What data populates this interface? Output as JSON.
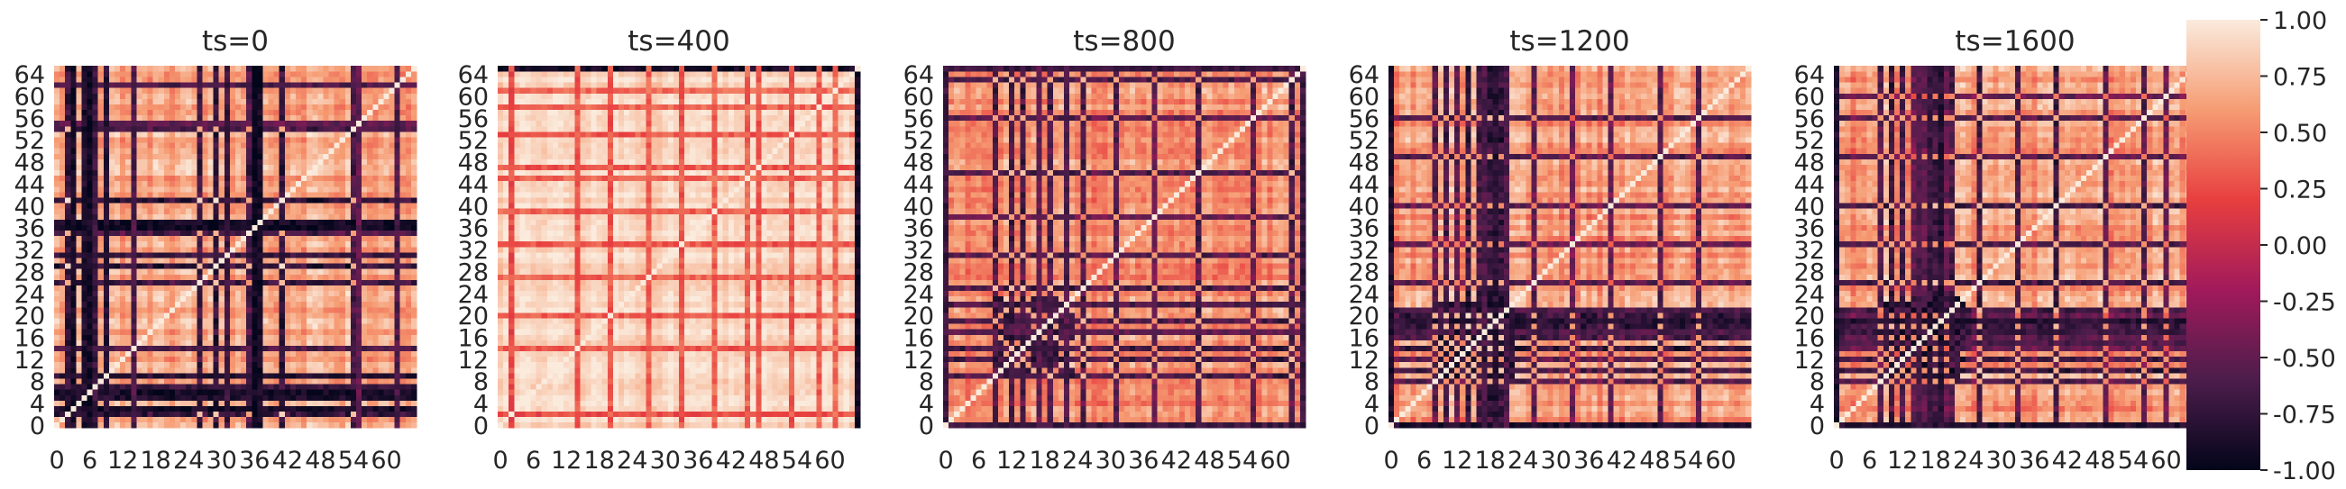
{
  "chart_data": {
    "type": "heatmap",
    "colormap": "rocket",
    "vmin": -1.0,
    "vmax": 1.0,
    "matrix_size": 66,
    "x_tick_labels": [
      "0",
      "6",
      "12",
      "18",
      "24",
      "30",
      "36",
      "42",
      "48",
      "54",
      "60"
    ],
    "y_tick_labels": [
      "64",
      "60",
      "56",
      "52",
      "48",
      "44",
      "40",
      "36",
      "32",
      "28",
      "24",
      "20",
      "16",
      "12",
      "8",
      "4",
      "0"
    ],
    "y_axis_origin": "bottom",
    "colorbar": {
      "ticks": [
        "1.00",
        "0.75",
        "0.50",
        "0.25",
        "0.00",
        "-0.25",
        "-0.50",
        "-0.75",
        "-1.00"
      ],
      "colors": [
        "#03051a",
        "#4c1d4b",
        "#a11a5b",
        "#e83f3f",
        "#f69c73",
        "#faebdd"
      ]
    },
    "panels": [
      {
        "title": "ts=0",
        "base": 0.55,
        "noise": 0.2,
        "sign_flip_indices": [
          2,
          5,
          6,
          14,
          26,
          29,
          31,
          35,
          36,
          37,
          41,
          54,
          55,
          62
        ],
        "dark_bands": [
          {
            "index": 3,
            "value": -0.9
          },
          {
            "index": 5,
            "value": -0.85
          },
          {
            "index": 6,
            "value": -0.9
          },
          {
            "index": 14,
            "value": -0.6
          },
          {
            "index": 36,
            "value": -0.95
          },
          {
            "index": 37,
            "value": -0.9
          },
          {
            "index": 31,
            "value": -0.7
          },
          {
            "index": 55,
            "value": -0.5
          },
          {
            "index": 62,
            "value": -0.6
          },
          {
            "index": 9,
            "value": -0.8
          },
          {
            "index": 7,
            "value": -0.7
          }
        ],
        "block": null
      },
      {
        "title": "ts=400",
        "base": 0.72,
        "noise": 0.12,
        "sign_flip_indices": [],
        "dark_bands": [
          {
            "index": 2,
            "value": 0.25
          },
          {
            "index": 14,
            "value": 0.3
          },
          {
            "index": 20,
            "value": 0.3
          },
          {
            "index": 27,
            "value": 0.35
          },
          {
            "index": 33,
            "value": 0.3
          },
          {
            "index": 39,
            "value": 0.35
          },
          {
            "index": 45,
            "value": 0.35
          },
          {
            "index": 47,
            "value": 0.3
          },
          {
            "index": 53,
            "value": 0.3
          },
          {
            "index": 58,
            "value": 0.35
          },
          {
            "index": 61,
            "value": 0.4
          },
          {
            "index": 65,
            "value": -0.9
          }
        ],
        "block": null
      },
      {
        "title": "ts=800",
        "base": 0.45,
        "noise": 0.22,
        "sign_flip_indices": [
          0,
          9,
          12,
          14,
          17,
          19,
          22,
          25,
          31,
          38,
          46,
          56,
          63
        ],
        "dark_bands": [
          {
            "index": 0,
            "value": -0.7
          },
          {
            "index": 17,
            "value": -0.5
          },
          {
            "index": 22,
            "value": -0.6
          },
          {
            "index": 65,
            "value": -0.7
          }
        ],
        "block": {
          "start": 9,
          "end": 23,
          "value": -0.45
        }
      },
      {
        "title": "ts=1200",
        "base": 0.48,
        "noise": 0.22,
        "sign_flip_indices": [
          0,
          8,
          10,
          12,
          14,
          16,
          18,
          20,
          21,
          26,
          33,
          40,
          49,
          56
        ],
        "dark_bands": [
          {
            "index": 0,
            "value": -0.85
          },
          {
            "index": 17,
            "value": -0.6
          },
          {
            "index": 19,
            "value": -0.8
          },
          {
            "index": 21,
            "value": -0.6
          }
        ],
        "block": {
          "start": 9,
          "end": 22,
          "value": -0.55
        }
      },
      {
        "title": "ts=1600",
        "base": 0.48,
        "noise": 0.22,
        "sign_flip_indices": [
          0,
          8,
          10,
          12,
          14,
          16,
          18,
          20,
          21,
          26,
          33,
          40,
          49,
          56,
          60
        ],
        "dark_bands": [
          {
            "index": 0,
            "value": -0.85
          },
          {
            "index": 17,
            "value": -0.7
          },
          {
            "index": 19,
            "value": -0.8
          },
          {
            "index": 15,
            "value": -0.6
          }
        ],
        "block": {
          "start": 9,
          "end": 23,
          "value": -0.6
        }
      }
    ]
  }
}
